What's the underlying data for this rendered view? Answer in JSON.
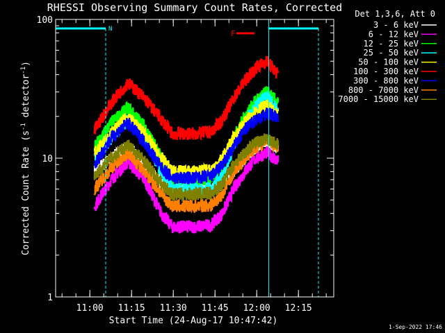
{
  "chart_data": {
    "type": "line",
    "title": "RHESSI Observing Summary Count Rates, Corrected",
    "xlabel": "Start Time (24-Aug-17 10:47:42)",
    "ylabel": "Corrected Count Rate (s",
    "ylabel_sup1": "-1",
    "ylabel_mid": " detector",
    "ylabel_sup2": "-1",
    "ylabel_end": ")",
    "yscale": "log",
    "ylim": [
      1,
      100
    ],
    "y_ticks": [
      1,
      10,
      100
    ],
    "y_tick_labels": [
      "1",
      "10",
      "100"
    ],
    "xlim_minutes": [
      0,
      100
    ],
    "x_tick_labels": [
      "11:00",
      "11:15",
      "11:30",
      "11:45",
      "12:00",
      "12:15"
    ],
    "x_tick_minutes": [
      12.3,
      27.3,
      42.3,
      57.3,
      72.3,
      87.3
    ],
    "legend_title": "Det 1,3,6, Att 0",
    "legend_position": "right",
    "footer_date": "1-Sep-2022 17:46",
    "annotations": {
      "night_label": "N",
      "flare_label": "F",
      "night_periods": [
        [
          -2,
          18.0
        ],
        [
          76.6,
          94.5
        ]
      ],
      "night_marker_x": 18.5,
      "flare_period": [
        64,
        71.5
      ],
      "saa_lines": [
        0,
        76.6
      ]
    },
    "series": [
      {
        "name": "3 - 6 keV",
        "color": "#ffffff",
        "points": [
          [
            14,
            8
          ],
          [
            20,
            10
          ],
          [
            26,
            12
          ],
          [
            32,
            9
          ],
          [
            38,
            6.5
          ],
          [
            42,
            6
          ],
          [
            50,
            6
          ],
          [
            56,
            6
          ],
          [
            60,
            6.5
          ],
          [
            64,
            8
          ],
          [
            68,
            10
          ],
          [
            72,
            12
          ],
          [
            76,
            13
          ],
          [
            80,
            12
          ]
        ]
      },
      {
        "name": "6 - 12 keV",
        "color": "#ff00ff",
        "points": [
          [
            14,
            4.5
          ],
          [
            20,
            7
          ],
          [
            26,
            9.5
          ],
          [
            32,
            7
          ],
          [
            38,
            4
          ],
          [
            42,
            3.2
          ],
          [
            50,
            3.2
          ],
          [
            56,
            3.3
          ],
          [
            60,
            4
          ],
          [
            64,
            6
          ],
          [
            68,
            8
          ],
          [
            72,
            10
          ],
          [
            76,
            11
          ],
          [
            80,
            9.5
          ]
        ]
      },
      {
        "name": "12 - 25 keV",
        "color": "#00ff00",
        "points": [
          [
            14,
            12
          ],
          [
            20,
            18
          ],
          [
            26,
            23
          ],
          [
            32,
            17
          ],
          [
            38,
            10
          ],
          [
            42,
            7
          ],
          [
            50,
            7
          ],
          [
            56,
            7.2
          ],
          [
            60,
            9
          ],
          [
            64,
            14
          ],
          [
            68,
            20
          ],
          [
            72,
            26
          ],
          [
            76,
            30
          ],
          [
            80,
            25
          ]
        ]
      },
      {
        "name": "25 - 50 keV",
        "color": "#00ffff",
        "points": [
          [
            14,
            10
          ],
          [
            20,
            14
          ],
          [
            26,
            19
          ],
          [
            32,
            14
          ],
          [
            38,
            8
          ],
          [
            42,
            6
          ],
          [
            50,
            6
          ],
          [
            56,
            6
          ],
          [
            60,
            7.5
          ],
          [
            64,
            12
          ],
          [
            68,
            18
          ],
          [
            72,
            24
          ],
          [
            76,
            28
          ],
          [
            80,
            22
          ]
        ]
      },
      {
        "name": "50 - 100 keV",
        "color": "#ffff00",
        "points": [
          [
            14,
            11
          ],
          [
            20,
            15
          ],
          [
            26,
            20
          ],
          [
            32,
            15
          ],
          [
            38,
            10
          ],
          [
            42,
            8
          ],
          [
            50,
            8
          ],
          [
            56,
            8.2
          ],
          [
            60,
            10
          ],
          [
            64,
            14
          ],
          [
            68,
            18
          ],
          [
            72,
            22
          ],
          [
            76,
            24
          ],
          [
            80,
            20
          ]
        ]
      },
      {
        "name": "100 - 300 keV",
        "color": "#ff0000",
        "points": [
          [
            14,
            16
          ],
          [
            20,
            25
          ],
          [
            26,
            35
          ],
          [
            32,
            27
          ],
          [
            38,
            19
          ],
          [
            42,
            15
          ],
          [
            50,
            15
          ],
          [
            56,
            15.5
          ],
          [
            60,
            19
          ],
          [
            64,
            27
          ],
          [
            68,
            36
          ],
          [
            72,
            45
          ],
          [
            76,
            50
          ],
          [
            80,
            40
          ]
        ]
      },
      {
        "name": "300 - 800 keV",
        "color": "#0000ff",
        "points": [
          [
            14,
            9
          ],
          [
            20,
            14
          ],
          [
            26,
            18
          ],
          [
            32,
            13
          ],
          [
            38,
            8.5
          ],
          [
            42,
            7.2
          ],
          [
            50,
            7.2
          ],
          [
            56,
            7.4
          ],
          [
            60,
            9
          ],
          [
            64,
            12
          ],
          [
            68,
            16
          ],
          [
            72,
            19
          ],
          [
            76,
            21
          ],
          [
            80,
            20
          ]
        ]
      },
      {
        "name": "800 - 7000 keV",
        "color": "#ff8000",
        "points": [
          [
            14,
            6
          ],
          [
            20,
            8.5
          ],
          [
            26,
            11
          ],
          [
            32,
            8
          ],
          [
            38,
            5.5
          ],
          [
            42,
            4.5
          ],
          [
            50,
            4.5
          ],
          [
            56,
            4.6
          ],
          [
            60,
            5.5
          ],
          [
            64,
            8
          ],
          [
            68,
            10
          ],
          [
            72,
            12
          ],
          [
            76,
            13.5
          ],
          [
            80,
            12
          ]
        ]
      },
      {
        "name": "7000 - 15000 keV",
        "color": "#808000",
        "points": [
          [
            14,
            7.5
          ],
          [
            20,
            10
          ],
          [
            26,
            12.5
          ],
          [
            32,
            9.5
          ],
          [
            38,
            6.5
          ],
          [
            42,
            5.5
          ],
          [
            50,
            5.5
          ],
          [
            56,
            5.6
          ],
          [
            60,
            6.5
          ],
          [
            64,
            9
          ],
          [
            68,
            11
          ],
          [
            72,
            13
          ],
          [
            76,
            14
          ],
          [
            80,
            12.5
          ]
        ]
      }
    ]
  }
}
